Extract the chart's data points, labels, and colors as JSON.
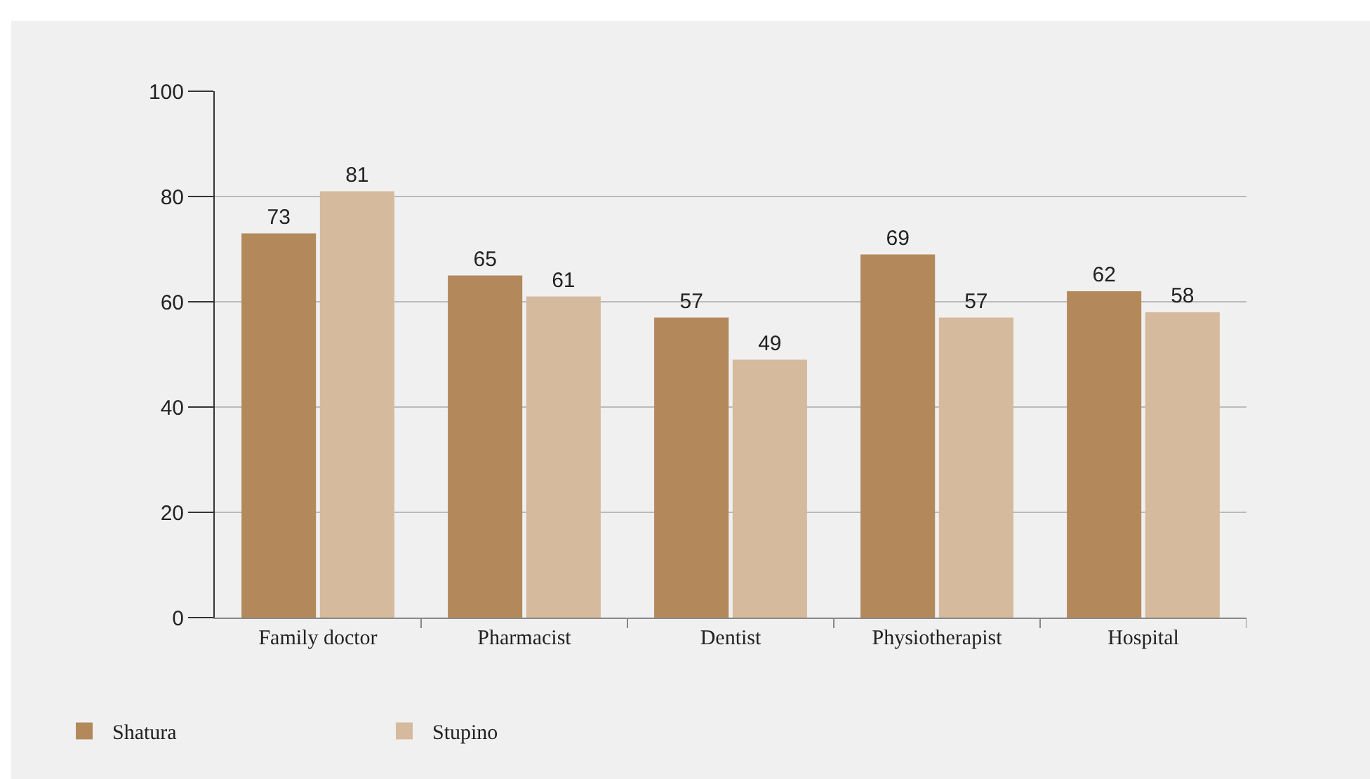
{
  "chart_data": {
    "type": "bar",
    "categories": [
      "Family doctor",
      "Pharmacist",
      "Dentist",
      "Physiotherapist",
      "Hospital"
    ],
    "series": [
      {
        "name": "Shatura",
        "color": "#b3895c",
        "values": [
          73,
          65,
          57,
          69,
          62
        ]
      },
      {
        "name": "Stupino",
        "color": "#d6ba9d",
        "values": [
          81,
          61,
          49,
          57,
          58
        ]
      }
    ],
    "ylim": [
      0,
      100
    ],
    "yticks": [
      0,
      20,
      40,
      60,
      80,
      100
    ],
    "grid": "y",
    "legend": "bottom left",
    "data_labels": true
  }
}
